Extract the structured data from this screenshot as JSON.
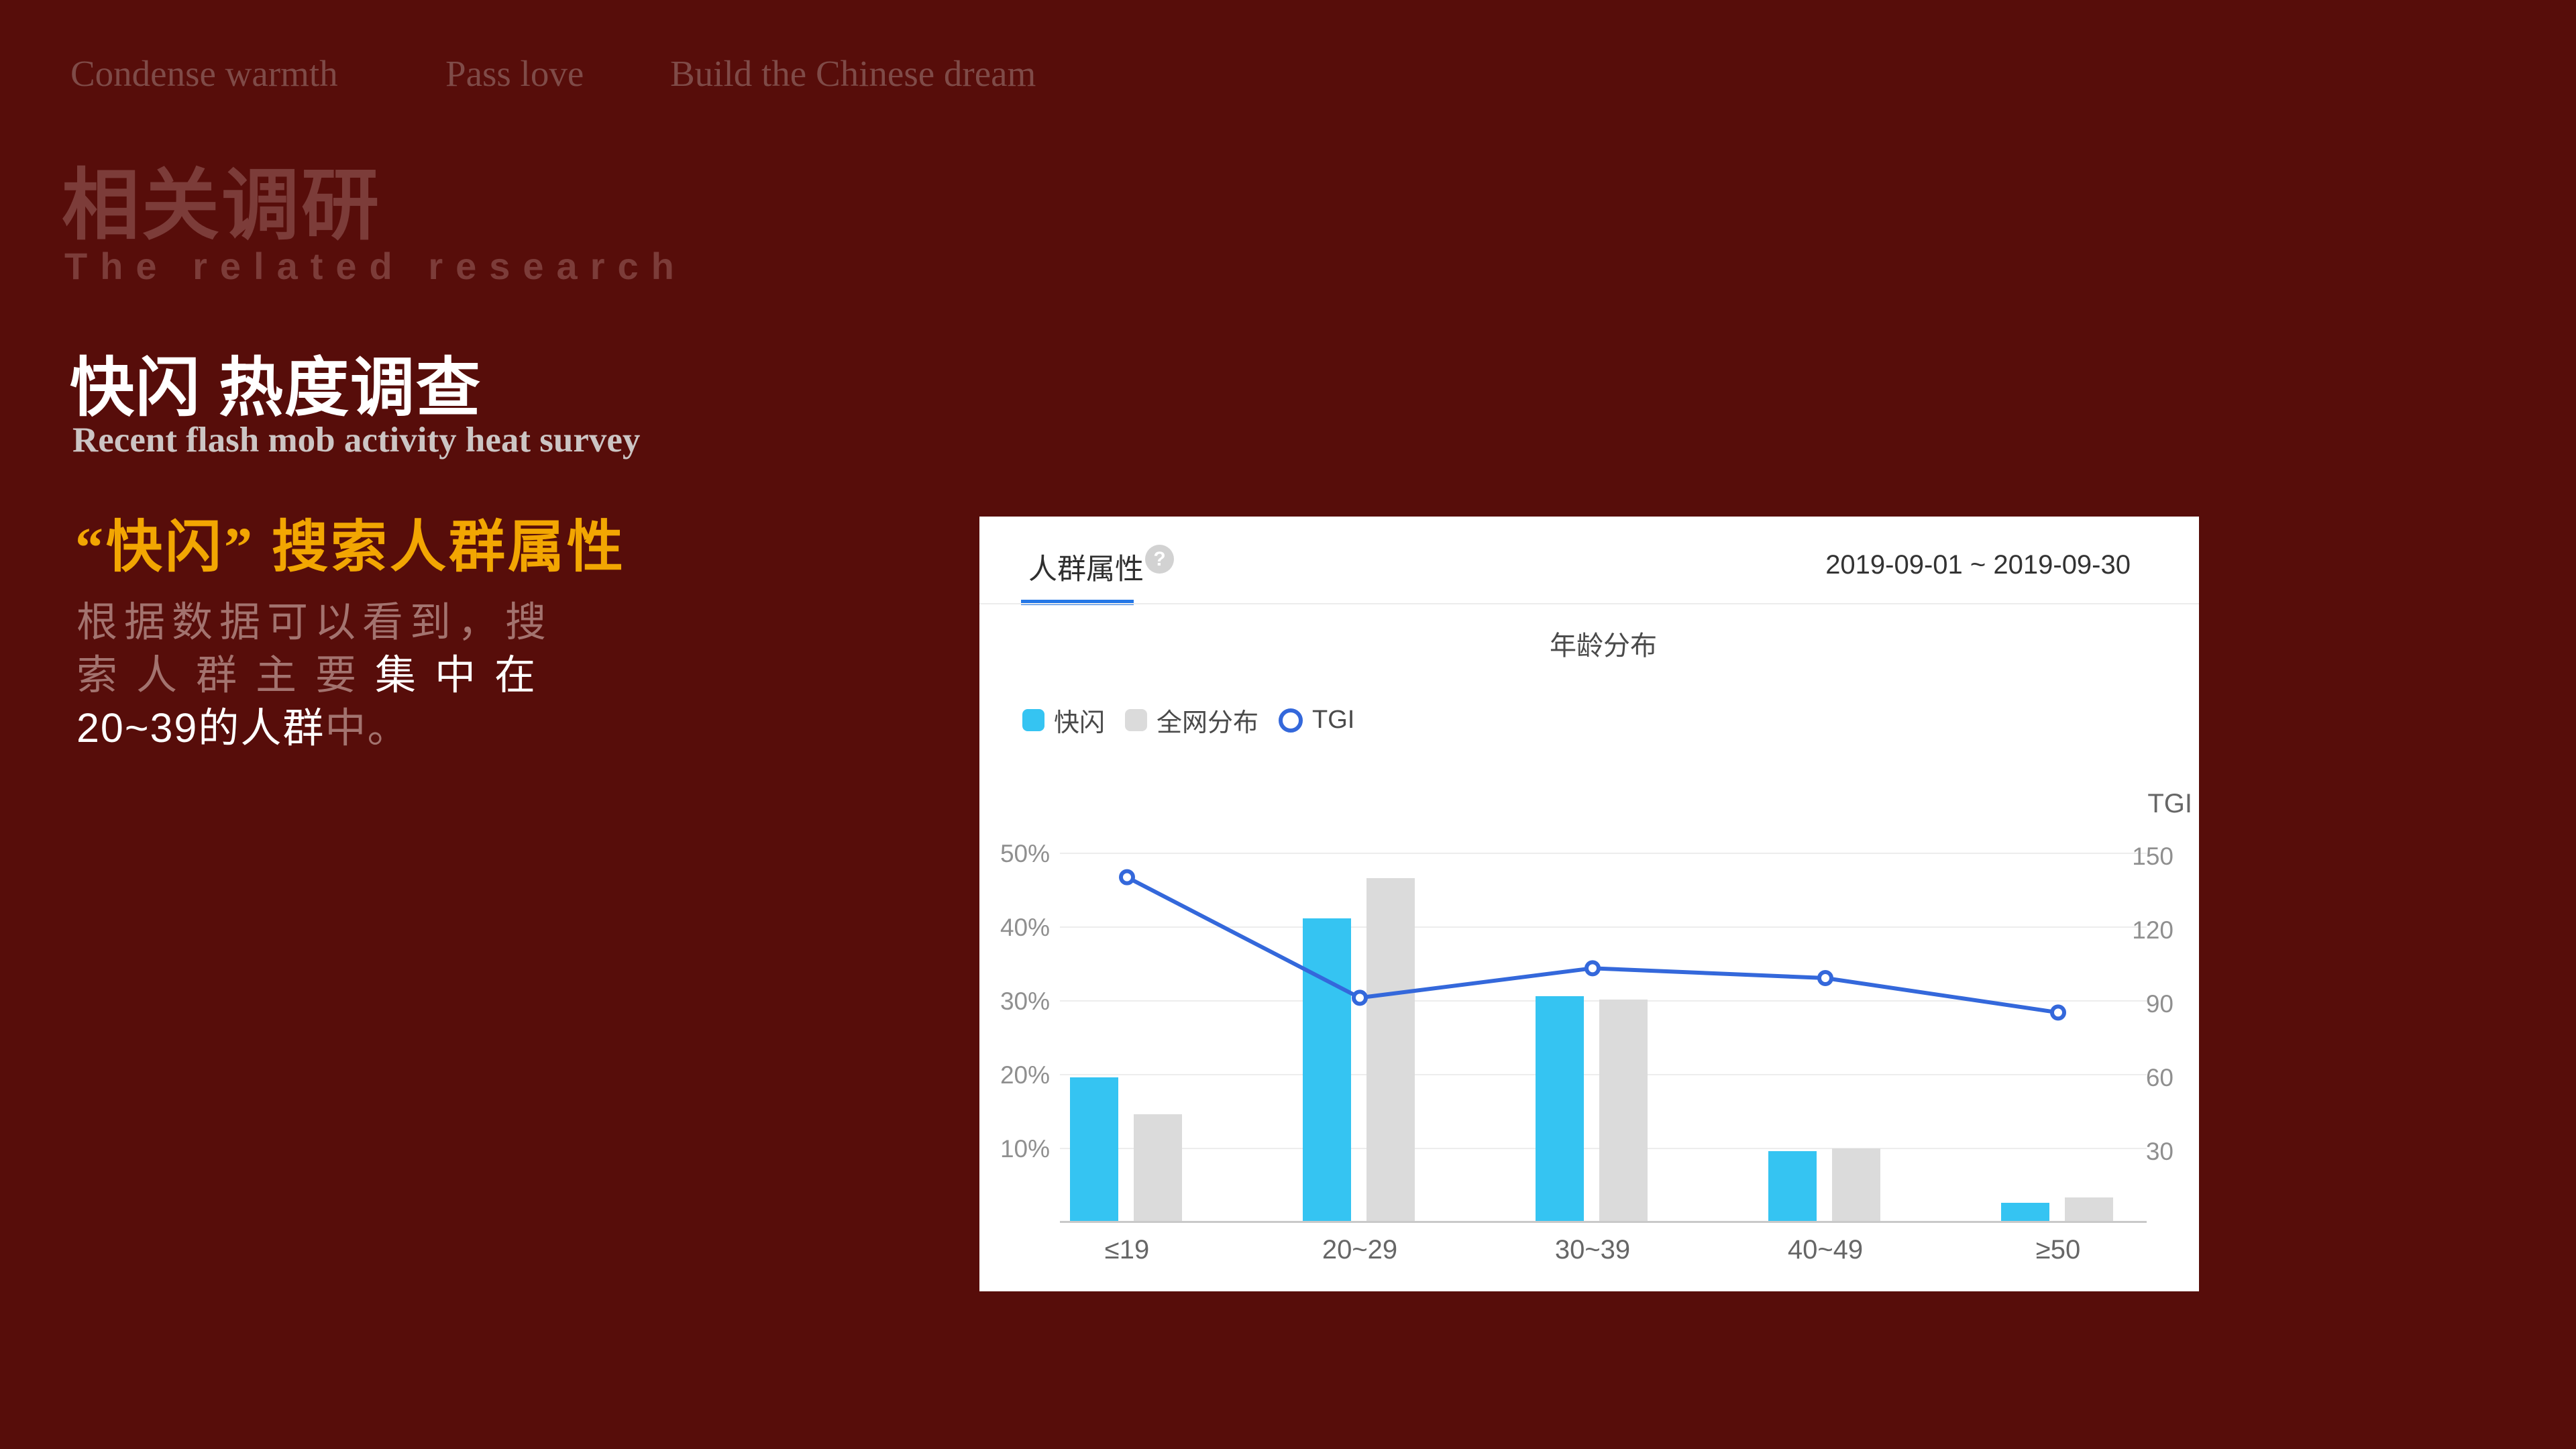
{
  "slide": {
    "mottos": [
      "Condense warmth",
      "Pass love",
      "Build the Chinese dream"
    ],
    "section_title_cn": "相关调研",
    "section_title_en": "The related research",
    "heading_cn": "快闪 热度调查",
    "heading_en": "Recent flash mob activity heat survey",
    "subheading_cn": "“快闪” 搜索人群属性",
    "paragraph": {
      "l1_muted": "根据数据可以看到，搜",
      "l2_muted": "索人群主要",
      "l2_white": "集中在",
      "l3_white": "20~39的人群",
      "l3_muted": "中。"
    }
  },
  "card": {
    "tab_label": "人群属性",
    "help_icon_glyph": "?",
    "date_range": "2019-09-01 ~ 2019-09-30",
    "right_axis_title": "TGI",
    "legend": [
      {
        "label": "快闪",
        "swatch": "square",
        "color": "#35c4f2"
      },
      {
        "label": "全网分布",
        "swatch": "square",
        "color": "#dbdbdb"
      },
      {
        "label": "TGI",
        "swatch": "ring",
        "color": "#3468db"
      }
    ]
  },
  "chart_data": {
    "type": "bar",
    "subtype": "grouped-bars-with-line-overlay",
    "title": "年龄分布",
    "categories": [
      "≤19",
      "20~29",
      "30~39",
      "40~49",
      "≥50"
    ],
    "series": [
      {
        "name": "快闪",
        "type": "bar",
        "axis": "left",
        "color": "#35c4f2",
        "values": [
          19.5,
          41,
          30.5,
          9.5,
          2.5
        ]
      },
      {
        "name": "全网分布",
        "type": "bar",
        "axis": "left",
        "color": "#dbdbdb",
        "values": [
          14.5,
          46.5,
          30,
          9.8,
          3.2
        ]
      },
      {
        "name": "TGI",
        "type": "line",
        "axis": "right",
        "color": "#3468db",
        "values": [
          140,
          91,
          103,
          99,
          85
        ]
      }
    ],
    "left_axis": {
      "unit": "%",
      "min": 0,
      "max": 50,
      "ticks": [
        "10%",
        "20%",
        "30%",
        "40%",
        "50%"
      ]
    },
    "right_axis": {
      "title": "TGI",
      "min": 0,
      "max": 150,
      "ticks": [
        30,
        60,
        90,
        120,
        150
      ]
    },
    "grid": true,
    "legend_position": "top-left"
  },
  "colors": {
    "slide_background": "#570d0a",
    "motto_text": "#7f4b48",
    "section_title": "#7c3c39",
    "heading_white": "#ffffff",
    "heading_en_gray": "#ccc5c4",
    "subheading_gold": "#f2a602",
    "paragraph_muted": "#a3736f",
    "card_background": "#ffffff",
    "tab_active_underline": "#2477e6",
    "bar_blue": "#35c4f2",
    "bar_gray": "#dbdbdb",
    "tgi_line_blue": "#3468db",
    "axis_label_gray": "#8f8f8f"
  }
}
